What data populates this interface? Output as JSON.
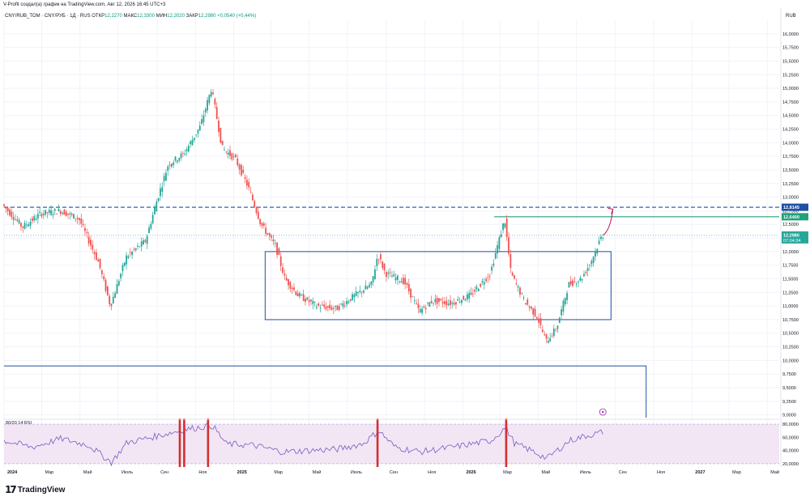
{
  "header": {
    "publisher_line": "V-Profit создал(а) график на TradingView.com, Авг 12, 2026 16:45 UTC+3",
    "symbol_line": "CNY/RUB_TOM · CNY/РУБ · 1Д · RUS",
    "ohlc": [
      {
        "label": "ОТКР",
        "value": "12,2270"
      },
      {
        "label": "МАКС",
        "value": "12,3300"
      },
      {
        "label": "МИН",
        "value": "12,2020"
      },
      {
        "label": "ЗАКР",
        "value": "12,2980"
      }
    ],
    "change": "+0,0540 (+0,44%)",
    "currency": "RUB"
  },
  "brand": {
    "name": "TradingView",
    "mark": "17"
  },
  "colors": {
    "up": "#26a69a",
    "down": "#ef5350",
    "blue": "#1e4fa3",
    "green": "#22a07a",
    "grid": "#f0f3fa",
    "rsi_bg": "#f2e6f4",
    "rsi_line": "#7e57c2",
    "red_bar": "#d32f2f",
    "arrow": "#c2185b"
  },
  "chart_data": {
    "type": "candlestick",
    "symbol": "CNY/RUB_TOM",
    "timeframe": "1Д",
    "x_ticks": [
      "2024",
      "Мар",
      "Май",
      "Июль",
      "Сен",
      "Ноя",
      "2025",
      "Мар",
      "Май",
      "Июль",
      "Сен",
      "Ноя",
      "2026",
      "Мар",
      "Май",
      "Июль",
      "Сен",
      "Ноя",
      "2027",
      "Мар",
      "Май"
    ],
    "y_ticks": [
      "16,0000",
      "15,7500",
      "15,5000",
      "15,2500",
      "15,0000",
      "14,7500",
      "14,5000",
      "14,2500",
      "14,0000",
      "13,7500",
      "13,5000",
      "13,2500",
      "13,0000",
      "12,7500",
      "12,5000",
      "12,2500",
      "12,0000",
      "11,7500",
      "11,5000",
      "11,2500",
      "11,0000",
      "10,7500",
      "10,5000",
      "10,2500",
      "10,0000",
      "9,7500",
      "9,5000",
      "9,2500",
      "9,0000"
    ],
    "ylim": [
      8.95,
      16.25
    ],
    "price_series": [
      [
        "2024-01-01",
        12.85
      ],
      [
        "2024-02-01",
        12.45
      ],
      [
        "2024-03-01",
        12.7
      ],
      [
        "2024-04-01",
        12.75
      ],
      [
        "2024-05-01",
        12.6
      ],
      [
        "2024-06-01",
        11.8
      ],
      [
        "2024-06-20",
        11.0
      ],
      [
        "2024-07-15",
        11.9
      ],
      [
        "2024-08-15",
        12.2
      ],
      [
        "2024-09-01",
        12.9
      ],
      [
        "2024-09-20",
        13.6
      ],
      [
        "2024-10-15",
        13.8
      ],
      [
        "2024-11-10",
        14.3
      ],
      [
        "2024-11-28",
        15.0
      ],
      [
        "2024-12-15",
        13.9
      ],
      [
        "2025-01-05",
        13.7
      ],
      [
        "2025-01-25",
        13.2
      ],
      [
        "2025-02-15",
        12.5
      ],
      [
        "2025-03-10",
        12.1
      ],
      [
        "2025-03-25",
        11.5
      ],
      [
        "2025-04-15",
        11.2
      ],
      [
        "2025-05-15",
        11.0
      ],
      [
        "2025-06-15",
        10.95
      ],
      [
        "2025-07-15",
        11.2
      ],
      [
        "2025-08-10",
        11.4
      ],
      [
        "2025-08-20",
        11.95
      ],
      [
        "2025-09-01",
        11.6
      ],
      [
        "2025-10-01",
        11.45
      ],
      [
        "2025-10-25",
        10.9
      ],
      [
        "2025-11-15",
        11.1
      ],
      [
        "2025-12-15",
        11.05
      ],
      [
        "2026-01-15",
        11.2
      ],
      [
        "2026-02-15",
        11.6
      ],
      [
        "2026-03-10",
        12.6
      ],
      [
        "2026-03-20",
        11.6
      ],
      [
        "2026-04-10",
        11.1
      ],
      [
        "2026-05-01",
        10.8
      ],
      [
        "2026-05-15",
        10.35
      ],
      [
        "2026-06-01",
        10.6
      ],
      [
        "2026-06-20",
        11.4
      ],
      [
        "2026-07-10",
        11.5
      ],
      [
        "2026-07-25",
        11.8
      ],
      [
        "2026-08-12",
        12.298
      ]
    ],
    "last_price": {
      "label": "12,2980",
      "countdown": "07:04:34"
    },
    "levels": [
      {
        "label": "12,8145",
        "value": 12.8145,
        "style": "dashed",
        "color": "#1e4fa3"
      },
      {
        "label": "12,6400",
        "value": 12.64,
        "style": "solid",
        "color": "#22a07a"
      }
    ],
    "rectangles": [
      {
        "from": "2025-02-20",
        "to": "2026-08-25",
        "top": 12.0,
        "bottom": 10.75
      },
      {
        "from": "2023-12-20",
        "to": "2026-10-20",
        "top": 9.9,
        "bottom": 8.9
      }
    ],
    "indicator": {
      "label": "80/20 14 RSI",
      "y_ticks": [
        "80,0000",
        "60,0000",
        "40,0000",
        "20,0000"
      ],
      "ylim": [
        15,
        85
      ],
      "overbought": 80,
      "oversold": 20,
      "series": [
        [
          "2024-01-01",
          55
        ],
        [
          "2024-02-15",
          45
        ],
        [
          "2024-04-01",
          58
        ],
        [
          "2024-05-15",
          48
        ],
        [
          "2024-06-20",
          22
        ],
        [
          "2024-07-15",
          52
        ],
        [
          "2024-09-01",
          62
        ],
        [
          "2024-10-15",
          72
        ],
        [
          "2024-11-28",
          78
        ],
        [
          "2024-12-20",
          50
        ],
        [
          "2025-02-01",
          48
        ],
        [
          "2025-03-20",
          38
        ],
        [
          "2025-05-01",
          40
        ],
        [
          "2025-06-15",
          42
        ],
        [
          "2025-07-25",
          50
        ],
        [
          "2025-08-20",
          70
        ],
        [
          "2025-09-15",
          45
        ],
        [
          "2025-10-25",
          38
        ],
        [
          "2025-12-15",
          45
        ],
        [
          "2026-02-15",
          55
        ],
        [
          "2026-03-10",
          75
        ],
        [
          "2026-03-25",
          50
        ],
        [
          "2026-04-20",
          40
        ],
        [
          "2026-05-15",
          28
        ],
        [
          "2026-06-20",
          55
        ],
        [
          "2026-07-15",
          62
        ],
        [
          "2026-08-12",
          68
        ]
      ],
      "signal_dates": [
        "2024-10-07",
        "2024-10-14",
        "2024-11-21",
        "2025-08-18",
        "2026-03-11"
      ]
    },
    "annotations": [
      {
        "type": "arrow",
        "from": "2026-08-12",
        "to": "2026-08-28",
        "from_value": 12.3,
        "to_value": 12.78
      }
    ],
    "grid": true,
    "price_axis": "right"
  }
}
